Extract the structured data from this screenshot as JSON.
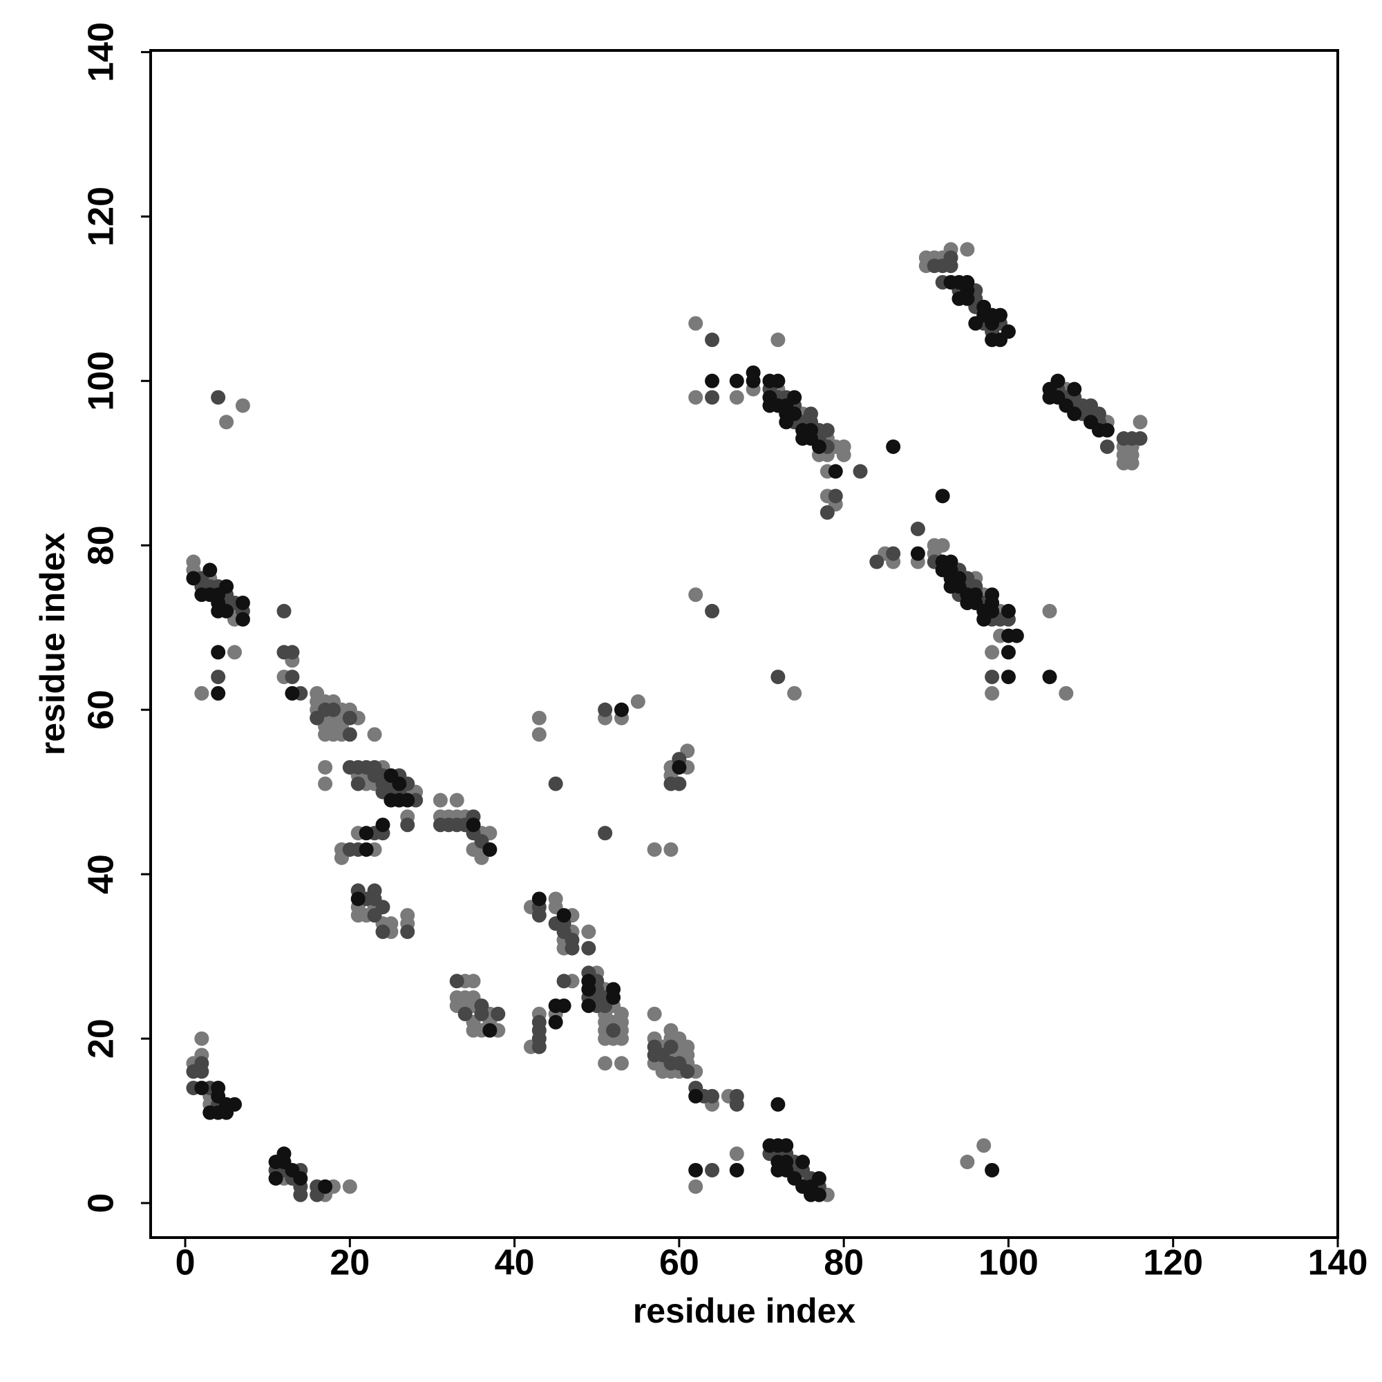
{
  "chart_data": {
    "type": "scatter",
    "xlabel": "residue index",
    "ylabel": "residue index",
    "xlim": [
      -4.2,
      140
    ],
    "ylim": [
      -4.2,
      140.2
    ],
    "xticks": [
      0,
      20,
      40,
      60,
      80,
      100,
      120,
      140
    ],
    "yticks": [
      0,
      20,
      40,
      60,
      80,
      100,
      120,
      140
    ],
    "grid": false,
    "series": [
      {
        "color": "#7a7a7a",
        "x": [
          1,
          1,
          3,
          6,
          6,
          5,
          7,
          2,
          6,
          12,
          13,
          16,
          16,
          16,
          17,
          17,
          17,
          18,
          18,
          18,
          19,
          19,
          19,
          20,
          21,
          17,
          18,
          19,
          23,
          17,
          17,
          21,
          22,
          22,
          23,
          24,
          27,
          28,
          27,
          21,
          19,
          19,
          23,
          31,
          31,
          32,
          33,
          33,
          34,
          36,
          36,
          36,
          37,
          35,
          21,
          21,
          22,
          23,
          24,
          25,
          25,
          27,
          27,
          33,
          33,
          34,
          34,
          34,
          35,
          35,
          35,
          35,
          35,
          36,
          37,
          37,
          38,
          42,
          45,
          45,
          46,
          46,
          47,
          47,
          49,
          42,
          43,
          45,
          47,
          50,
          51,
          51,
          51,
          51,
          51,
          51,
          52,
          52,
          53,
          53,
          53,
          53,
          53,
          52,
          57,
          57,
          57,
          58,
          58,
          58,
          59,
          59,
          59,
          59,
          60,
          60,
          60,
          60,
          61,
          61,
          61,
          62,
          64,
          66,
          1,
          2,
          2,
          3,
          3,
          12,
          17,
          18,
          20,
          62,
          67,
          75,
          78,
          95,
          97,
          43,
          43,
          51,
          53,
          55,
          57,
          59,
          59,
          59,
          61,
          61,
          62,
          62,
          67,
          69,
          72,
          72,
          75,
          77,
          78,
          78,
          78,
          78,
          79,
          79,
          80,
          80,
          85,
          86,
          89,
          91,
          91,
          92,
          96,
          97,
          98,
          98,
          99,
          99,
          74,
          62,
          105,
          107,
          90,
          90,
          91,
          92,
          93,
          95,
          107,
          112,
          114,
          114,
          114,
          115,
          115,
          115,
          116
        ],
        "values": [
          78,
          77,
          76,
          72,
          71,
          95,
          97,
          62,
          67,
          64,
          66,
          62,
          61,
          60,
          61,
          59,
          58,
          61,
          59,
          58,
          60,
          59,
          58,
          60,
          59,
          57,
          57,
          57,
          57,
          53,
          51,
          52,
          52,
          51,
          51,
          53,
          50,
          50,
          47,
          45,
          43,
          42,
          43,
          49,
          47,
          47,
          49,
          47,
          47,
          45,
          43,
          42,
          45,
          43,
          36,
          35,
          35,
          36,
          34,
          34,
          33,
          35,
          34,
          25,
          24,
          27,
          25,
          24,
          27,
          25,
          24,
          22,
          21,
          21,
          23,
          22,
          21,
          36,
          37,
          36,
          32,
          31,
          35,
          33,
          33,
          19,
          23,
          23,
          27,
          28,
          26,
          23,
          22,
          21,
          20,
          17,
          24,
          22,
          23,
          22,
          21,
          20,
          17,
          20,
          23,
          20,
          17,
          19,
          17,
          16,
          21,
          20,
          18,
          16,
          20,
          19,
          18,
          16,
          19,
          18,
          17,
          16,
          12,
          13,
          17,
          20,
          18,
          13,
          12,
          3,
          1,
          2,
          2,
          2,
          6,
          3,
          1,
          5,
          7,
          59,
          57,
          59,
          59,
          61,
          43,
          43,
          53,
          52,
          55,
          53,
          107,
          98,
          98,
          99,
          105,
          99,
          96,
          91,
          93,
          91,
          89,
          86,
          92,
          85,
          92,
          91,
          79,
          78,
          78,
          80,
          79,
          80,
          76,
          74,
          67,
          62,
          72,
          69,
          62,
          74,
          72,
          62,
          115,
          114,
          115,
          115,
          116,
          116,
          99,
          95,
          92,
          91,
          90,
          92,
          91,
          90,
          95
        ]
      },
      {
        "color": "#474747",
        "x": [
          2,
          2,
          3,
          4,
          5,
          5,
          6,
          7,
          4,
          4,
          12,
          12,
          13,
          13,
          14,
          16,
          17,
          18,
          20,
          20,
          20,
          21,
          21,
          22,
          23,
          23,
          24,
          24,
          24,
          25,
          25,
          26,
          26,
          27,
          28,
          27,
          24,
          23,
          20,
          21,
          31,
          32,
          33,
          34,
          35,
          35,
          36,
          21,
          22,
          23,
          23,
          23,
          24,
          24,
          27,
          33,
          34,
          36,
          36,
          38,
          43,
          43,
          45,
          46,
          46,
          47,
          47,
          49,
          43,
          43,
          43,
          43,
          46,
          49,
          49,
          50,
          50,
          50,
          50,
          51,
          51,
          52,
          57,
          57,
          58,
          59,
          59,
          60,
          61,
          62,
          63,
          64,
          67,
          67,
          1,
          1,
          2,
          2,
          3,
          4,
          11,
          12,
          13,
          14,
          14,
          14,
          16,
          16,
          64,
          71,
          72,
          73,
          74,
          74,
          75,
          76,
          77,
          45,
          51,
          51,
          59,
          60,
          60,
          64,
          64,
          71,
          72,
          73,
          74,
          74,
          75,
          76,
          76,
          77,
          77,
          78,
          78,
          78,
          79,
          82,
          84,
          86,
          89,
          91,
          94,
          94,
          95,
          95,
          96,
          97,
          98,
          98,
          99,
          100,
          72,
          64,
          91,
          92,
          92,
          93,
          93,
          94,
          96,
          96,
          96,
          97,
          98,
          99,
          106,
          107,
          108,
          108,
          109,
          109,
          110,
          110,
          111,
          111,
          112,
          114,
          115,
          116
        ],
        "values": [
          76,
          75,
          75,
          75,
          74,
          73,
          73,
          72,
          98,
          64,
          72,
          67,
          67,
          64,
          62,
          59,
          60,
          60,
          59,
          57,
          53,
          53,
          51,
          53,
          53,
          52,
          52,
          51,
          50,
          51,
          50,
          52,
          50,
          51,
          49,
          46,
          45,
          45,
          43,
          43,
          46,
          46,
          46,
          46,
          47,
          45,
          44,
          38,
          37,
          38,
          37,
          35,
          36,
          33,
          33,
          27,
          23,
          24,
          23,
          23,
          36,
          35,
          34,
          34,
          33,
          32,
          31,
          31,
          22,
          21,
          20,
          19,
          27,
          28,
          25,
          27,
          26,
          25,
          24,
          25,
          24,
          21,
          19,
          18,
          18,
          19,
          17,
          17,
          16,
          14,
          13,
          13,
          13,
          12,
          16,
          14,
          17,
          16,
          14,
          12,
          4,
          4,
          3,
          4,
          2,
          1,
          2,
          1,
          4,
          6,
          6,
          6,
          5,
          4,
          4,
          3,
          2,
          51,
          60,
          45,
          51,
          54,
          51,
          105,
          98,
          99,
          98,
          98,
          97,
          95,
          95,
          96,
          95,
          94,
          93,
          94,
          92,
          84,
          86,
          89,
          78,
          79,
          82,
          78,
          77,
          74,
          76,
          75,
          75,
          73,
          71,
          64,
          71,
          71,
          64,
          72,
          114,
          114,
          112,
          115,
          114,
          111,
          111,
          110,
          109,
          107,
          106,
          107,
          99,
          98,
          98,
          97,
          97,
          96,
          97,
          96,
          96,
          95,
          92,
          93,
          93,
          93
        ]
      },
      {
        "color": "#111111",
        "x": [
          1,
          2,
          3,
          3,
          4,
          4,
          4,
          5,
          5,
          7,
          7,
          4,
          4,
          13,
          25,
          25,
          26,
          26,
          27,
          24,
          22,
          22,
          35,
          37,
          21,
          37,
          43,
          46,
          45,
          45,
          46,
          49,
          49,
          49,
          52,
          52,
          62,
          2,
          3,
          4,
          4,
          4,
          5,
          5,
          6,
          11,
          11,
          12,
          12,
          13,
          14,
          17,
          62,
          67,
          71,
          72,
          72,
          72,
          73,
          73,
          73,
          74,
          75,
          75,
          76,
          76,
          77,
          77,
          72,
          98,
          53,
          60,
          64,
          67,
          69,
          69,
          71,
          71,
          71,
          72,
          72,
          73,
          73,
          73,
          74,
          74,
          75,
          75,
          76,
          76,
          77,
          79,
          86,
          89,
          92,
          92,
          92,
          93,
          93,
          93,
          93,
          94,
          94,
          95,
          95,
          96,
          96,
          97,
          97,
          98,
          98,
          98,
          100,
          100,
          100,
          100,
          101,
          105,
          93,
          94,
          94,
          95,
          95,
          95,
          96,
          97,
          97,
          98,
          98,
          98,
          99,
          99,
          100,
          105,
          105,
          106,
          106,
          107,
          108,
          108,
          110,
          111,
          112
        ],
        "values": [
          76,
          74,
          77,
          74,
          74,
          73,
          72,
          75,
          72,
          73,
          71,
          67,
          62,
          62,
          52,
          49,
          51,
          49,
          49,
          46,
          45,
          43,
          46,
          43,
          37,
          21,
          37,
          35,
          24,
          22,
          24,
          27,
          26,
          24,
          26,
          25,
          13,
          14,
          11,
          14,
          13,
          11,
          12,
          11,
          12,
          5,
          3,
          6,
          5,
          4,
          3,
          2,
          4,
          4,
          7,
          7,
          5,
          4,
          7,
          5,
          4,
          3,
          5,
          2,
          2,
          1,
          3,
          1,
          12,
          4,
          60,
          53,
          100,
          100,
          101,
          100,
          100,
          98,
          97,
          100,
          97,
          97,
          96,
          95,
          98,
          96,
          94,
          93,
          94,
          93,
          92,
          89,
          92,
          79,
          86,
          78,
          77,
          78,
          77,
          76,
          75,
          76,
          75,
          74,
          73,
          74,
          73,
          72,
          71,
          74,
          73,
          72,
          72,
          69,
          67,
          64,
          69,
          64,
          112,
          112,
          110,
          112,
          111,
          110,
          107,
          109,
          108,
          108,
          107,
          105,
          108,
          105,
          106,
          99,
          98,
          100,
          98,
          97,
          99,
          96,
          95,
          94,
          94
        ]
      }
    ]
  }
}
